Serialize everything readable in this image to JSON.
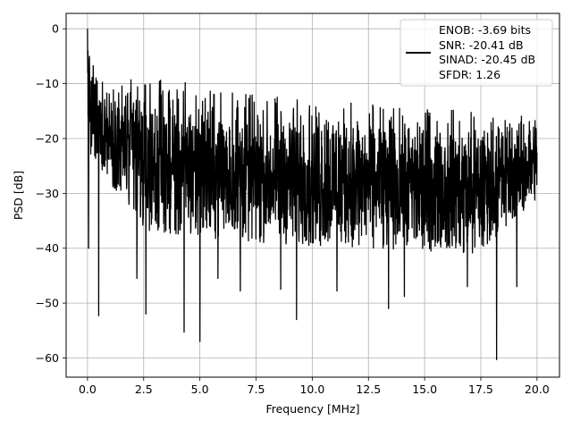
{
  "chart_data": {
    "type": "line",
    "title": "",
    "xlabel": "Frequency [MHz]",
    "ylabel": "PSD [dB]",
    "xlim": [
      -0.95,
      21.0
    ],
    "ylim": [
      -63.5,
      2.8
    ],
    "xticks": [
      0.0,
      2.5,
      5.0,
      7.5,
      10.0,
      12.5,
      15.0,
      17.5,
      20.0
    ],
    "xtick_labels": [
      "0.0",
      "2.5",
      "5.0",
      "7.5",
      "10.0",
      "12.5",
      "15.0",
      "17.5",
      "20.0"
    ],
    "yticks": [
      0,
      -10,
      -20,
      -30,
      -40,
      -50,
      -60
    ],
    "ytick_labels": [
      "0",
      "−10",
      "−20",
      "−30",
      "−40",
      "−50",
      "−60"
    ],
    "grid": true,
    "legend_position": "top-right",
    "legend_lines": [
      "ENOB: -3.69 bits",
      "SNR: -20.41 dB",
      "SINAD: -20.45 dB",
      "SFDR: 1.26"
    ],
    "series_color": "#000000",
    "grid_color": "#b0b0b0",
    "series": [
      {
        "x_range": [
          0.0,
          20.0
        ],
        "num_points": 2048,
        "band_top": [
          [
            0.0,
            0.0
          ],
          [
            0.1,
            -5.0
          ],
          [
            0.5,
            -8.5
          ],
          [
            2.5,
            -9.0
          ],
          [
            5.0,
            -10.0
          ],
          [
            7.5,
            -11.5
          ],
          [
            10.0,
            -12.5
          ],
          [
            12.5,
            -13.5
          ],
          [
            15.0,
            -14.5
          ],
          [
            17.5,
            -15.0
          ],
          [
            20.0,
            -16.0
          ]
        ],
        "band_bottom": [
          [
            0.0,
            -22.0
          ],
          [
            2.5,
            -37.0
          ],
          [
            5.0,
            -38.0
          ],
          [
            7.5,
            -39.0
          ],
          [
            10.0,
            -39.5
          ],
          [
            12.5,
            -40.0
          ],
          [
            15.0,
            -40.5
          ],
          [
            17.5,
            -41.0
          ],
          [
            20.0,
            -31.0
          ]
        ],
        "dips": [
          [
            0.05,
            -40.0
          ],
          [
            0.5,
            -52.3
          ],
          [
            2.2,
            -45.5
          ],
          [
            2.6,
            -52.0
          ],
          [
            4.3,
            -55.3
          ],
          [
            5.0,
            -57.0
          ],
          [
            5.8,
            -45.5
          ],
          [
            6.8,
            -47.8
          ],
          [
            8.6,
            -47.5
          ],
          [
            9.3,
            -53.0
          ],
          [
            11.1,
            -47.8
          ],
          [
            13.4,
            -51.0
          ],
          [
            14.1,
            -48.8
          ],
          [
            16.9,
            -47.0
          ],
          [
            18.2,
            -60.3
          ],
          [
            19.1,
            -47.0
          ]
        ]
      }
    ]
  }
}
